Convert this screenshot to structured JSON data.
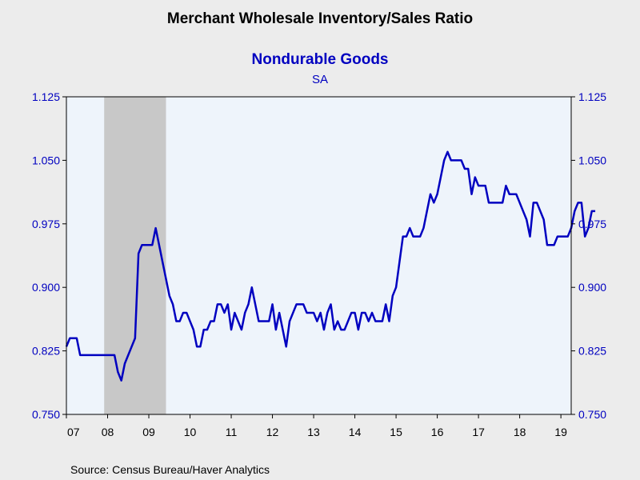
{
  "colors": {
    "background": "#ececec",
    "plot_background": "#eef4fb",
    "recession_shade": "#c8c8c8",
    "line": "#0000c0",
    "accent_text": "#0000c0",
    "axis": "#000000"
  },
  "header": {
    "title": "Merchant Wholesale Inventory/Sales Ratio",
    "subtitle": "Nondurable Goods",
    "note": "SA"
  },
  "footer": {
    "source": "Source:  Census Bureau/Haver Analytics"
  },
  "chart_data": {
    "type": "line",
    "title": "Merchant Wholesale Inventory/Sales Ratio",
    "subtitle": "Nondurable Goods",
    "note": "SA",
    "xlabel": "",
    "ylabel": "",
    "x_tick_labels": [
      "07",
      "08",
      "09",
      "10",
      "11",
      "12",
      "13",
      "14",
      "15",
      "16",
      "17",
      "18",
      "19"
    ],
    "x_tick_years": [
      2007,
      2008,
      2009,
      2010,
      2011,
      2012,
      2013,
      2014,
      2015,
      2016,
      2017,
      2018,
      2019
    ],
    "xlim": [
      "2007-01",
      "2019-04"
    ],
    "y_tick_labels": [
      "0.750",
      "0.825",
      "0.900",
      "0.975",
      "1.050",
      "1.125"
    ],
    "ylim": [
      0.75,
      1.125
    ],
    "y_axis_both_sides": true,
    "grid": false,
    "shaded_period": {
      "start": "2007-12",
      "end": "2009-06"
    },
    "series": [
      {
        "start": "2007-01",
        "frequency": "monthly",
        "values": [
          0.83,
          0.84,
          0.84,
          0.84,
          0.82,
          0.82,
          0.82,
          0.82,
          0.82,
          0.82,
          0.82,
          0.82,
          0.82,
          0.82,
          0.82,
          0.8,
          0.79,
          0.81,
          0.82,
          0.83,
          0.84,
          0.94,
          0.95,
          0.95,
          0.95,
          0.95,
          0.97,
          0.95,
          0.93,
          0.91,
          0.89,
          0.88,
          0.86,
          0.86,
          0.87,
          0.87,
          0.86,
          0.85,
          0.83,
          0.83,
          0.85,
          0.85,
          0.86,
          0.86,
          0.88,
          0.88,
          0.87,
          0.88,
          0.85,
          0.87,
          0.86,
          0.85,
          0.87,
          0.88,
          0.9,
          0.88,
          0.86,
          0.86,
          0.86,
          0.86,
          0.88,
          0.85,
          0.87,
          0.85,
          0.83,
          0.86,
          0.87,
          0.88,
          0.88,
          0.88,
          0.87,
          0.87,
          0.87,
          0.86,
          0.87,
          0.85,
          0.87,
          0.88,
          0.85,
          0.86,
          0.85,
          0.85,
          0.86,
          0.87,
          0.87,
          0.85,
          0.87,
          0.87,
          0.86,
          0.87,
          0.86,
          0.86,
          0.86,
          0.88,
          0.86,
          0.89,
          0.9,
          0.93,
          0.96,
          0.96,
          0.97,
          0.96,
          0.96,
          0.96,
          0.97,
          0.99,
          1.01,
          1.0,
          1.01,
          1.03,
          1.05,
          1.06,
          1.05,
          1.05,
          1.05,
          1.05,
          1.04,
          1.04,
          1.01,
          1.03,
          1.02,
          1.02,
          1.02,
          1.0,
          1.0,
          1.0,
          1.0,
          1.0,
          1.02,
          1.01,
          1.01,
          1.01,
          1.0,
          0.99,
          0.98,
          0.96,
          1.0,
          1.0,
          0.99,
          0.98,
          0.95,
          0.95,
          0.95,
          0.96,
          0.96,
          0.96,
          0.96,
          0.97,
          0.99,
          1.0,
          1.0,
          0.96,
          0.97,
          0.99,
          0.99
        ]
      }
    ]
  }
}
